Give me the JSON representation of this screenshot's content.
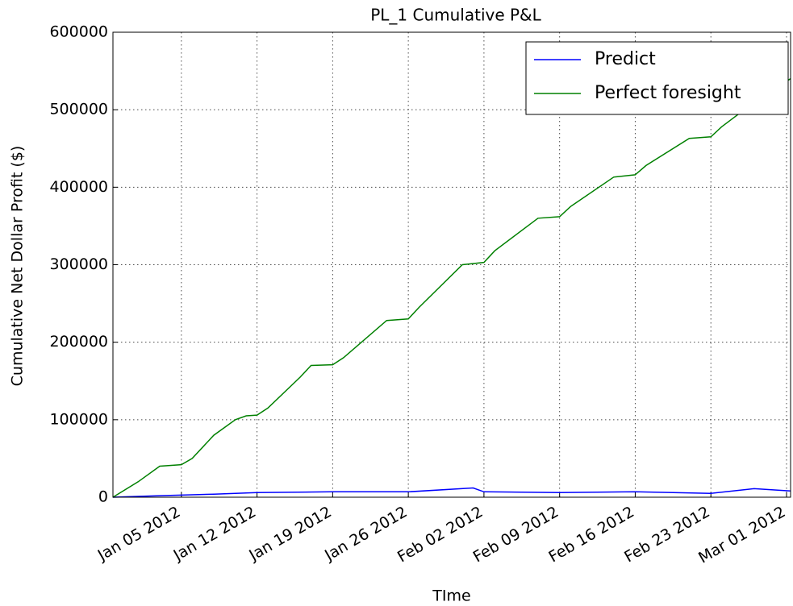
{
  "chart_data": {
    "type": "line",
    "title": "PL_1 Cumulative P&L",
    "xlabel": "TIme",
    "ylabel": "Cumulative Net Dollar Profit ($)",
    "xlim": [
      "2011-12-29T16:00",
      "2012-03-01T09:00"
    ],
    "ylim": [
      0,
      600000
    ],
    "yticks": [
      0,
      100000,
      200000,
      300000,
      400000,
      500000,
      600000
    ],
    "xticks": [
      {
        "value": "2012-01-05",
        "label": "Jan 05 2012"
      },
      {
        "value": "2012-01-12",
        "label": "Jan 12 2012"
      },
      {
        "value": "2012-01-19",
        "label": "Jan 19 2012"
      },
      {
        "value": "2012-01-26",
        "label": "Jan 26 2012"
      },
      {
        "value": "2012-02-02",
        "label": "Feb 02 2012"
      },
      {
        "value": "2012-02-09",
        "label": "Feb 09 2012"
      },
      {
        "value": "2012-02-16",
        "label": "Feb 16 2012"
      },
      {
        "value": "2012-02-23",
        "label": "Feb 23 2012"
      },
      {
        "value": "2012-03-01",
        "label": "Mar 01 2012"
      }
    ],
    "grid": true,
    "legend": "upper right",
    "series": [
      {
        "name": "Predict",
        "color": "#0000ff",
        "x": [
          "2011-12-29T16:00",
          "2012-01-03",
          "2012-01-08",
          "2012-01-12",
          "2012-01-19",
          "2012-01-26",
          "2012-02-01",
          "2012-02-02",
          "2012-02-09",
          "2012-02-16",
          "2012-02-23",
          "2012-02-27",
          "2012-03-01T09:00"
        ],
        "values": [
          0,
          2000,
          4000,
          6000,
          7000,
          7000,
          12000,
          7000,
          6000,
          7000,
          5000,
          11000,
          8000
        ]
      },
      {
        "name": "Perfect foresight",
        "color": "#008000",
        "x": [
          "2011-12-29T16:00",
          "2012-01-01",
          "2012-01-03",
          "2012-01-05",
          "2012-01-06",
          "2012-01-08",
          "2012-01-10",
          "2012-01-11",
          "2012-01-12",
          "2012-01-13",
          "2012-01-16",
          "2012-01-17",
          "2012-01-19",
          "2012-01-20",
          "2012-01-24",
          "2012-01-26",
          "2012-01-27",
          "2012-01-31",
          "2012-02-02",
          "2012-02-03",
          "2012-02-07",
          "2012-02-09",
          "2012-02-10",
          "2012-02-14",
          "2012-02-16",
          "2012-02-17",
          "2012-02-21",
          "2012-02-23",
          "2012-02-24",
          "2012-02-28",
          "2012-03-01T09:00"
        ],
        "values": [
          0,
          20000,
          40000,
          42000,
          50000,
          80000,
          100000,
          105000,
          106000,
          115000,
          155000,
          170000,
          171000,
          180000,
          228000,
          230000,
          245000,
          300000,
          303000,
          318000,
          360000,
          362000,
          375000,
          413000,
          416000,
          428000,
          463000,
          465000,
          478000,
          520000,
          540000
        ]
      }
    ]
  }
}
